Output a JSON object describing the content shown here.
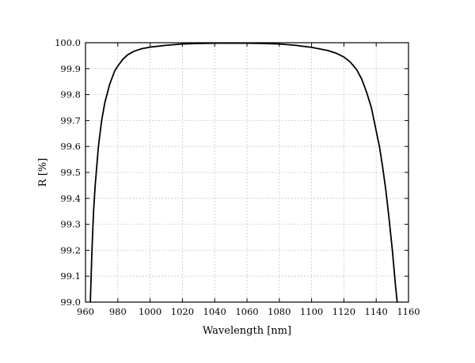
{
  "chart_data": {
    "type": "line",
    "title": "",
    "xlabel": "Wavelength [nm]",
    "ylabel": "R [%]",
    "xlim": [
      960,
      1160
    ],
    "ylim": [
      99.0,
      100.0
    ],
    "grid": true,
    "x_ticks": [
      960,
      980,
      1000,
      1020,
      1040,
      1060,
      1080,
      1100,
      1120,
      1140,
      1160
    ],
    "x_tick_labels": [
      "960",
      "980",
      "1000",
      "1020",
      "1040",
      "1060",
      "1080",
      "1100",
      "1120",
      "1140",
      "1160"
    ],
    "y_ticks": [
      99.0,
      99.1,
      99.2,
      99.3,
      99.4,
      99.5,
      99.6,
      99.7,
      99.8,
      99.9,
      100.0
    ],
    "y_tick_labels": [
      "99.0",
      "99.1",
      "99.2",
      "99.3",
      "99.4",
      "99.5",
      "99.6",
      "99.7",
      "99.8",
      "99.9",
      "100.0"
    ],
    "series": [
      {
        "x": [
          963,
          964,
          965,
          966,
          968,
          970,
          972,
          975,
          978,
          980,
          983,
          986,
          990,
          995,
          1000,
          1010,
          1020,
          1030,
          1040,
          1050,
          1060,
          1070,
          1080,
          1090,
          1100,
          1110,
          1115,
          1120,
          1124,
          1128,
          1131,
          1134,
          1137,
          1140,
          1142,
          1144,
          1146,
          1148,
          1150,
          1151,
          1152,
          1153
        ],
        "y": [
          99.0,
          99.2,
          99.35,
          99.45,
          99.6,
          99.7,
          99.77,
          99.84,
          99.89,
          99.91,
          99.935,
          99.953,
          99.967,
          99.977,
          99.983,
          99.99,
          99.995,
          99.997,
          99.998,
          99.998,
          99.998,
          99.997,
          99.995,
          99.99,
          99.982,
          99.97,
          99.96,
          99.945,
          99.925,
          99.895,
          99.86,
          99.81,
          99.75,
          99.66,
          99.6,
          99.52,
          99.43,
          99.32,
          99.2,
          99.13,
          99.06,
          99.0
        ]
      }
    ]
  }
}
